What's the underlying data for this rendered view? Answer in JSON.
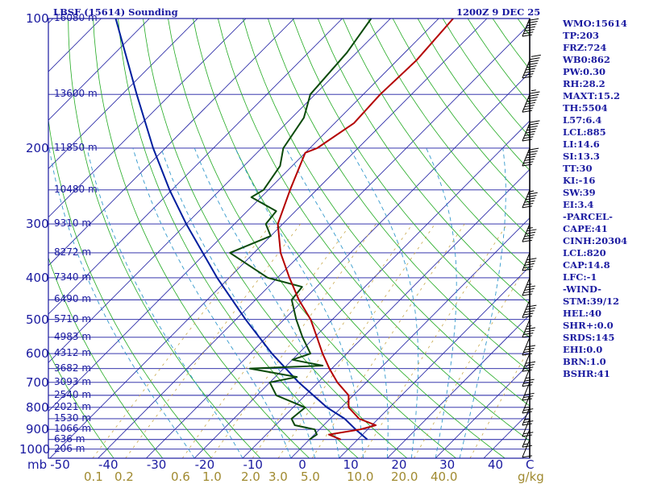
{
  "title_left": "LBSF (15614) Sounding",
  "title_right": "1200Z  9 DEC 25",
  "units": {
    "pressure": "mb",
    "temperature": "C",
    "mixing_ratio": "g/kg"
  },
  "colors": {
    "frame": "#1a1aa0",
    "isobar": "#1a1aa0",
    "isotherm": "#1a1aa0",
    "dry_adiabat": "#22aa22",
    "moist_adiabat": "#3399cc",
    "mixing_ratio": "#c8a84a",
    "temperature": "#b40000",
    "dewpoint": "#0a4a0a",
    "parcel": "#001e9e",
    "wind": "#000000"
  },
  "sidebar": [
    "WMO:15614",
    "TP:203",
    "FRZ:724",
    "WB0:862",
    "PW:0.30",
    "RH:28.2",
    "MAXT:15.2",
    "TH:5504",
    "L57:6.4",
    "LCL:885",
    "LI:14.6",
    "SI:13.3",
    "TT:30",
    "KI:-16",
    "SW:39",
    "EI:3.4",
    "-PARCEL-",
    "CAPE:41",
    "CINH:20304",
    "LCL:820",
    "CAP:14.8",
    "LFC:-1",
    "-WIND-",
    "STM:39/12",
    "HEL:40",
    "SHR+:0.0",
    "SRDS:145",
    "EHI:0.0",
    "BRN:1.0",
    "BSHR:41"
  ],
  "chart_data": {
    "type": "skew-t",
    "pressure_ticks": [
      100,
      200,
      300,
      400,
      500,
      600,
      700,
      800,
      900,
      1000
    ],
    "temperature_ticks": [
      -50,
      -40,
      -30,
      -20,
      -10,
      0,
      10,
      20,
      30,
      40
    ],
    "mixing_ratio_ticks": [
      "0.1",
      "0.2",
      "0.6",
      "1.0",
      "2.0",
      "3.0",
      "5.0",
      "10.0",
      "20.0",
      "40.0"
    ],
    "height_labels": [
      {
        "p": 100,
        "label": "16080 m"
      },
      {
        "p": 150,
        "label": "13600 m"
      },
      {
        "p": 200,
        "label": "11850 m"
      },
      {
        "p": 250,
        "label": "10480 m"
      },
      {
        "p": 300,
        "label": "9310 m"
      },
      {
        "p": 350,
        "label": "8272 m"
      },
      {
        "p": 400,
        "label": "7340 m"
      },
      {
        "p": 450,
        "label": "6490 m"
      },
      {
        "p": 500,
        "label": "5710 m"
      },
      {
        "p": 550,
        "label": "4983 m"
      },
      {
        "p": 600,
        "label": "4312 m"
      },
      {
        "p": 650,
        "label": "3682 m"
      },
      {
        "p": 700,
        "label": "3093 m"
      },
      {
        "p": 750,
        "label": "2540 m"
      },
      {
        "p": 800,
        "label": "2021 m"
      },
      {
        "p": 850,
        "label": "1530 m"
      },
      {
        "p": 900,
        "label": "1066 m"
      },
      {
        "p": 950,
        "label": "636 m"
      },
      {
        "p": 1000,
        "label": "206 m"
      }
    ],
    "temperature_profile": [
      {
        "p": 950,
        "t": 6.5
      },
      {
        "p": 925,
        "t": 3.0
      },
      {
        "p": 900,
        "t": 8.5
      },
      {
        "p": 880,
        "t": 10.8
      },
      {
        "p": 850,
        "t": 6.0
      },
      {
        "p": 800,
        "t": 1.5
      },
      {
        "p": 750,
        "t": -1.0
      },
      {
        "p": 700,
        "t": -6.0
      },
      {
        "p": 650,
        "t": -10.5
      },
      {
        "p": 600,
        "t": -15.0
      },
      {
        "p": 550,
        "t": -19.5
      },
      {
        "p": 500,
        "t": -24.5
      },
      {
        "p": 450,
        "t": -31.0
      },
      {
        "p": 400,
        "t": -37.5
      },
      {
        "p": 350,
        "t": -44.5
      },
      {
        "p": 300,
        "t": -51.0
      },
      {
        "p": 250,
        "t": -55.5
      },
      {
        "p": 205,
        "t": -60.0
      },
      {
        "p": 200,
        "t": -58.5
      },
      {
        "p": 175,
        "t": -56.0
      },
      {
        "p": 150,
        "t": -56.5
      },
      {
        "p": 125,
        "t": -56.0
      },
      {
        "p": 100,
        "t": -57.0
      }
    ],
    "dewpoint_profile": [
      {
        "p": 950,
        "t": 0.0
      },
      {
        "p": 925,
        "t": 0.5
      },
      {
        "p": 900,
        "t": -1.0
      },
      {
        "p": 880,
        "t": -6.0
      },
      {
        "p": 850,
        "t": -8.0
      },
      {
        "p": 800,
        "t": -7.5
      },
      {
        "p": 750,
        "t": -16.0
      },
      {
        "p": 700,
        "t": -20.0
      },
      {
        "p": 680,
        "t": -15.5
      },
      {
        "p": 650,
        "t": -27.0
      },
      {
        "p": 640,
        "t": -12.5
      },
      {
        "p": 620,
        "t": -20.0
      },
      {
        "p": 600,
        "t": -17.5
      },
      {
        "p": 550,
        "t": -22.5
      },
      {
        "p": 500,
        "t": -27.5
      },
      {
        "p": 450,
        "t": -32.5
      },
      {
        "p": 420,
        "t": -33.0
      },
      {
        "p": 400,
        "t": -42.0
      },
      {
        "p": 350,
        "t": -55.0
      },
      {
        "p": 320,
        "t": -50.0
      },
      {
        "p": 300,
        "t": -53.5
      },
      {
        "p": 280,
        "t": -54.0
      },
      {
        "p": 260,
        "t": -62.0
      },
      {
        "p": 250,
        "t": -61.0
      },
      {
        "p": 220,
        "t": -62.5
      },
      {
        "p": 200,
        "t": -65.5
      },
      {
        "p": 170,
        "t": -67.5
      },
      {
        "p": 150,
        "t": -71.0
      },
      {
        "p": 120,
        "t": -72.0
      },
      {
        "p": 100,
        "t": -74.0
      }
    ],
    "parcel_profile": [
      {
        "p": 950,
        "t": 12.0
      },
      {
        "p": 900,
        "t": 7.5
      },
      {
        "p": 850,
        "t": 3.0
      },
      {
        "p": 800,
        "t": -3.0
      },
      {
        "p": 700,
        "t": -14.0
      },
      {
        "p": 600,
        "t": -25.5
      },
      {
        "p": 500,
        "t": -38.0
      },
      {
        "p": 400,
        "t": -52.5
      },
      {
        "p": 300,
        "t": -70.0
      },
      {
        "p": 250,
        "t": -80.5
      },
      {
        "p": 200,
        "t": -92.5
      },
      {
        "p": 150,
        "t": -107.0
      },
      {
        "p": 100,
        "t": -127.0
      }
    ],
    "wind_barbs": [
      {
        "p": 950,
        "kt": 10
      },
      {
        "p": 900,
        "kt": 15
      },
      {
        "p": 850,
        "kt": 20
      },
      {
        "p": 800,
        "kt": 25
      },
      {
        "p": 750,
        "kt": 25
      },
      {
        "p": 700,
        "kt": 30
      },
      {
        "p": 650,
        "kt": 35
      },
      {
        "p": 600,
        "kt": 40
      },
      {
        "p": 550,
        "kt": 40
      },
      {
        "p": 500,
        "kt": 45
      },
      {
        "p": 450,
        "kt": 50
      },
      {
        "p": 400,
        "kt": 45
      },
      {
        "p": 350,
        "kt": 50
      },
      {
        "p": 300,
        "kt": 55
      },
      {
        "p": 250,
        "kt": 65
      },
      {
        "p": 200,
        "kt": 70
      },
      {
        "p": 175,
        "kt": 80
      },
      {
        "p": 150,
        "kt": 85
      },
      {
        "p": 125,
        "kt": 90
      },
      {
        "p": 100,
        "kt": 70
      }
    ]
  }
}
